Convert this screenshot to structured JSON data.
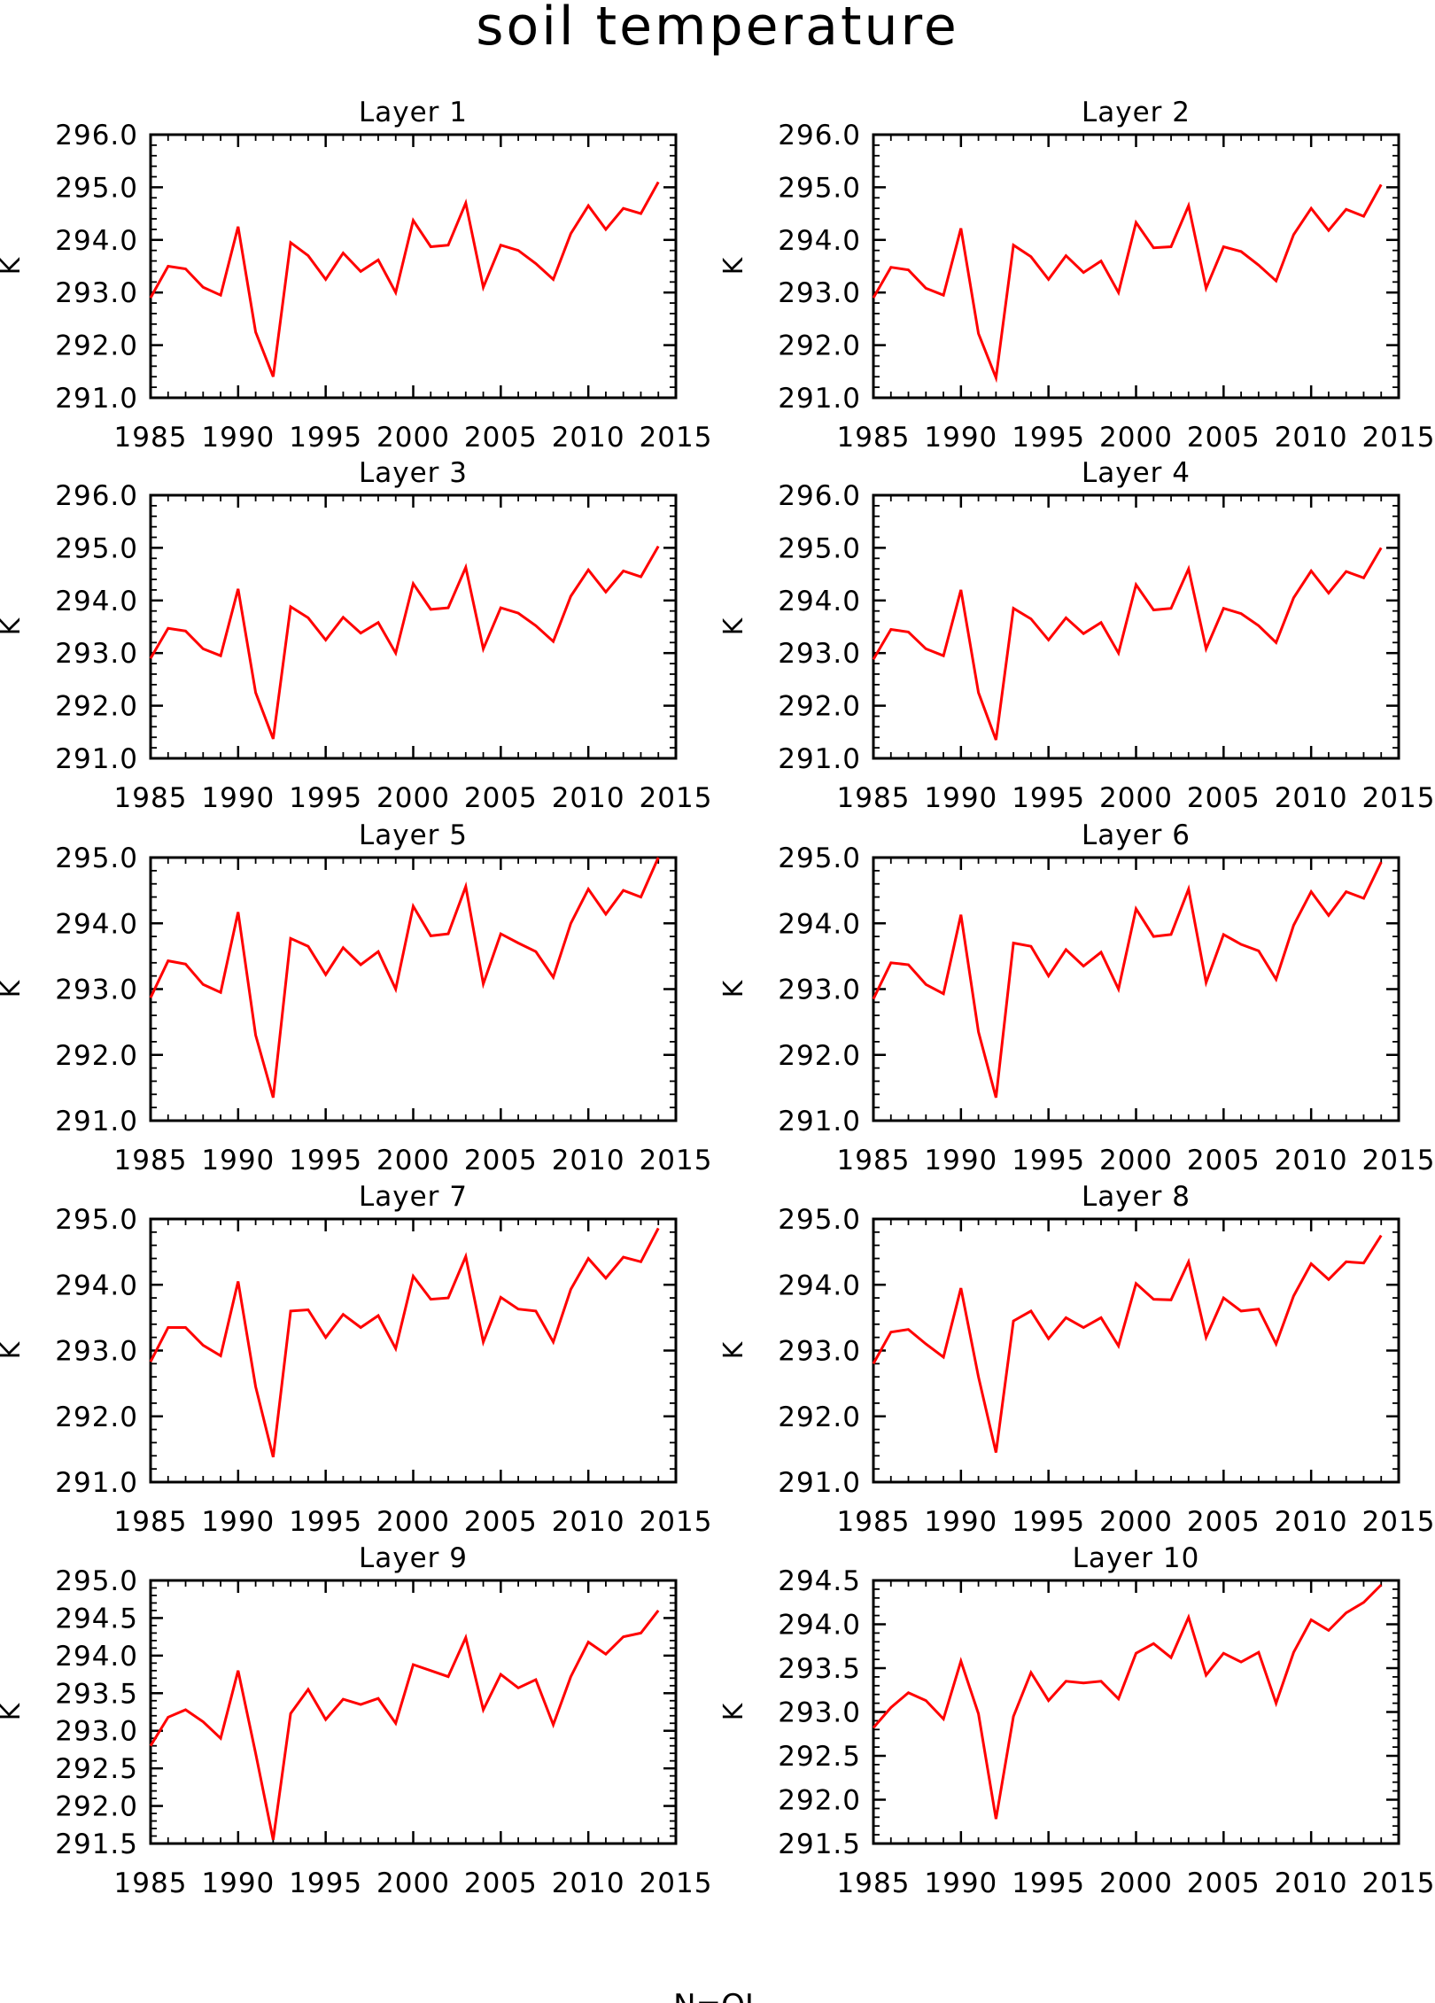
{
  "title": "soil temperature",
  "footer": "N=QL",
  "colors": {
    "series": "#ff0000",
    "axis": "#000000",
    "background": "#ffffff"
  },
  "chart_data": [
    {
      "type": "line",
      "title": "Layer 1",
      "xlabel": "",
      "ylabel": "K",
      "xlim": [
        1985,
        2015
      ],
      "ylim": [
        291.0,
        296.0
      ],
      "xticks": [
        "1985",
        "1990",
        "1995",
        "2000",
        "2005",
        "2010",
        "2015"
      ],
      "yticks": [
        "291.0",
        "292.0",
        "293.0",
        "294.0",
        "295.0",
        "296.0"
      ],
      "x": [
        1985,
        1986,
        1987,
        1988,
        1989,
        1990,
        1991,
        1992,
        1993,
        1994,
        1995,
        1996,
        1997,
        1998,
        1999,
        2000,
        2001,
        2002,
        2003,
        2004,
        2005,
        2006,
        2007,
        2008,
        2009,
        2010,
        2011,
        2012,
        2013,
        2014
      ],
      "values": [
        292.9,
        293.5,
        293.45,
        293.1,
        292.95,
        294.25,
        292.25,
        291.4,
        293.95,
        293.7,
        293.25,
        293.75,
        293.4,
        293.62,
        293.0,
        294.37,
        293.87,
        293.9,
        294.7,
        293.1,
        293.9,
        293.8,
        293.55,
        293.25,
        294.12,
        294.65,
        294.2,
        294.6,
        294.5,
        295.1
      ]
    },
    {
      "type": "line",
      "title": "Layer 2",
      "xlabel": "",
      "ylabel": "K",
      "xlim": [
        1985,
        2015
      ],
      "ylim": [
        291.0,
        296.0
      ],
      "xticks": [
        "1985",
        "1990",
        "1995",
        "2000",
        "2005",
        "2010",
        "2015"
      ],
      "yticks": [
        "291.0",
        "292.0",
        "293.0",
        "294.0",
        "295.0",
        "296.0"
      ],
      "x": [
        1985,
        1986,
        1987,
        1988,
        1989,
        1990,
        1991,
        1992,
        1993,
        1994,
        1995,
        1996,
        1997,
        1998,
        1999,
        2000,
        2001,
        2002,
        2003,
        2004,
        2005,
        2006,
        2007,
        2008,
        2009,
        2010,
        2011,
        2012,
        2013,
        2014
      ],
      "values": [
        292.9,
        293.48,
        293.43,
        293.08,
        292.95,
        294.22,
        292.22,
        291.38,
        293.9,
        293.68,
        293.25,
        293.7,
        293.38,
        293.6,
        293.0,
        294.33,
        293.85,
        293.87,
        294.65,
        293.08,
        293.87,
        293.78,
        293.52,
        293.22,
        294.1,
        294.6,
        294.18,
        294.58,
        294.45,
        295.05
      ]
    },
    {
      "type": "line",
      "title": "Layer 3",
      "xlabel": "",
      "ylabel": "K",
      "xlim": [
        1985,
        2015
      ],
      "ylim": [
        291.0,
        296.0
      ],
      "xticks": [
        "1985",
        "1990",
        "1995",
        "2000",
        "2005",
        "2010",
        "2015"
      ],
      "yticks": [
        "291.0",
        "292.0",
        "293.0",
        "294.0",
        "295.0",
        "296.0"
      ],
      "x": [
        1985,
        1986,
        1987,
        1988,
        1989,
        1990,
        1991,
        1992,
        1993,
        1994,
        1995,
        1996,
        1997,
        1998,
        1999,
        2000,
        2001,
        2002,
        2003,
        2004,
        2005,
        2006,
        2007,
        2008,
        2009,
        2010,
        2011,
        2012,
        2013,
        2014
      ],
      "values": [
        292.9,
        293.47,
        293.42,
        293.08,
        292.95,
        294.22,
        292.25,
        291.37,
        293.88,
        293.67,
        293.25,
        293.68,
        293.38,
        293.58,
        293.0,
        294.32,
        293.83,
        293.86,
        294.63,
        293.08,
        293.86,
        293.76,
        293.52,
        293.22,
        294.08,
        294.58,
        294.16,
        294.56,
        294.45,
        295.03
      ]
    },
    {
      "type": "line",
      "title": "Layer 4",
      "xlabel": "",
      "ylabel": "K",
      "xlim": [
        1985,
        2015
      ],
      "ylim": [
        291.0,
        296.0
      ],
      "xticks": [
        "1985",
        "1990",
        "1995",
        "2000",
        "2005",
        "2010",
        "2015"
      ],
      "yticks": [
        "291.0",
        "292.0",
        "293.0",
        "294.0",
        "295.0",
        "296.0"
      ],
      "x": [
        1985,
        1986,
        1987,
        1988,
        1989,
        1990,
        1991,
        1992,
        1993,
        1994,
        1995,
        1996,
        1997,
        1998,
        1999,
        2000,
        2001,
        2002,
        2003,
        2004,
        2005,
        2006,
        2007,
        2008,
        2009,
        2010,
        2011,
        2012,
        2013,
        2014
      ],
      "values": [
        292.88,
        293.45,
        293.4,
        293.08,
        292.95,
        294.2,
        292.25,
        291.35,
        293.85,
        293.65,
        293.25,
        293.67,
        293.37,
        293.58,
        293.0,
        294.3,
        293.82,
        293.85,
        294.6,
        293.08,
        293.85,
        293.75,
        293.52,
        293.2,
        294.05,
        294.56,
        294.14,
        294.55,
        294.43,
        295.0
      ]
    },
    {
      "type": "line",
      "title": "Layer 5",
      "xlabel": "",
      "ylabel": "K",
      "xlim": [
        1985,
        2015
      ],
      "ylim": [
        291.0,
        295.0
      ],
      "xticks": [
        "1985",
        "1990",
        "1995",
        "2000",
        "2005",
        "2010",
        "2015"
      ],
      "yticks": [
        "291.0",
        "292.0",
        "293.0",
        "294.0",
        "295.0"
      ],
      "x": [
        1985,
        1986,
        1987,
        1988,
        1989,
        1990,
        1991,
        1992,
        1993,
        1994,
        1995,
        1996,
        1997,
        1998,
        1999,
        2000,
        2001,
        2002,
        2003,
        2004,
        2005,
        2006,
        2007,
        2008,
        2009,
        2010,
        2011,
        2012,
        2013,
        2014
      ],
      "values": [
        292.87,
        293.43,
        293.38,
        293.07,
        292.95,
        294.17,
        292.3,
        291.35,
        293.77,
        293.65,
        293.22,
        293.63,
        293.37,
        293.57,
        293.0,
        294.26,
        293.81,
        293.84,
        294.56,
        293.08,
        293.84,
        293.7,
        293.57,
        293.18,
        294.0,
        294.52,
        294.14,
        294.5,
        294.4,
        295.0
      ]
    },
    {
      "type": "line",
      "title": "Layer 6",
      "xlabel": "",
      "ylabel": "K",
      "xlim": [
        1985,
        2015
      ],
      "ylim": [
        291.0,
        295.0
      ],
      "xticks": [
        "1985",
        "1990",
        "1995",
        "2000",
        "2005",
        "2010",
        "2015"
      ],
      "yticks": [
        "291.0",
        "292.0",
        "293.0",
        "294.0",
        "295.0"
      ],
      "x": [
        1985,
        1986,
        1987,
        1988,
        1989,
        1990,
        1991,
        1992,
        1993,
        1994,
        1995,
        1996,
        1997,
        1998,
        1999,
        2000,
        2001,
        2002,
        2003,
        2004,
        2005,
        2006,
        2007,
        2008,
        2009,
        2010,
        2011,
        2012,
        2013,
        2014
      ],
      "values": [
        292.85,
        293.4,
        293.37,
        293.07,
        292.93,
        294.13,
        292.35,
        291.35,
        293.7,
        293.65,
        293.2,
        293.6,
        293.35,
        293.56,
        293.0,
        294.22,
        293.8,
        293.83,
        294.52,
        293.1,
        293.83,
        293.68,
        293.58,
        293.15,
        293.97,
        294.48,
        294.12,
        294.48,
        294.38,
        294.93
      ]
    },
    {
      "type": "line",
      "title": "Layer 7",
      "xlabel": "",
      "ylabel": "K",
      "xlim": [
        1985,
        2015
      ],
      "ylim": [
        291.0,
        295.0
      ],
      "xticks": [
        "1985",
        "1990",
        "1995",
        "2000",
        "2005",
        "2010",
        "2015"
      ],
      "yticks": [
        "291.0",
        "292.0",
        "293.0",
        "294.0",
        "295.0"
      ],
      "x": [
        1985,
        1986,
        1987,
        1988,
        1989,
        1990,
        1991,
        1992,
        1993,
        1994,
        1995,
        1996,
        1997,
        1998,
        1999,
        2000,
        2001,
        2002,
        2003,
        2004,
        2005,
        2006,
        2007,
        2008,
        2009,
        2010,
        2011,
        2012,
        2013,
        2014
      ],
      "values": [
        292.83,
        293.35,
        293.35,
        293.08,
        292.92,
        294.05,
        292.45,
        291.38,
        293.6,
        293.62,
        293.2,
        293.55,
        293.35,
        293.53,
        293.03,
        294.13,
        293.78,
        293.8,
        294.43,
        293.13,
        293.81,
        293.63,
        293.6,
        293.13,
        293.93,
        294.4,
        294.1,
        294.42,
        294.35,
        294.86
      ]
    },
    {
      "type": "line",
      "title": "Layer 8",
      "xlabel": "",
      "ylabel": "K",
      "xlim": [
        1985,
        2015
      ],
      "ylim": [
        291.0,
        295.0
      ],
      "xticks": [
        "1985",
        "1990",
        "1995",
        "2000",
        "2005",
        "2010",
        "2015"
      ],
      "yticks": [
        "291.0",
        "292.0",
        "293.0",
        "294.0",
        "295.0"
      ],
      "x": [
        1985,
        1986,
        1987,
        1988,
        1989,
        1990,
        1991,
        1992,
        1993,
        1994,
        1995,
        1996,
        1997,
        1998,
        1999,
        2000,
        2001,
        2002,
        2003,
        2004,
        2005,
        2006,
        2007,
        2008,
        2009,
        2010,
        2011,
        2012,
        2013,
        2014
      ],
      "values": [
        292.8,
        293.28,
        293.32,
        293.1,
        292.9,
        293.95,
        292.6,
        291.45,
        293.45,
        293.6,
        293.18,
        293.5,
        293.35,
        293.5,
        293.07,
        294.02,
        293.78,
        293.77,
        294.35,
        293.2,
        293.8,
        293.6,
        293.63,
        293.1,
        293.83,
        294.32,
        294.08,
        294.35,
        294.33,
        294.75
      ]
    },
    {
      "type": "line",
      "title": "Layer 9",
      "xlabel": "",
      "ylabel": "K",
      "xlim": [
        1985,
        2015
      ],
      "ylim": [
        291.5,
        295.0
      ],
      "xticks": [
        "1985",
        "1990",
        "1995",
        "2000",
        "2005",
        "2010",
        "2015"
      ],
      "yticks": [
        "291.5",
        "292.0",
        "292.5",
        "293.0",
        "293.5",
        "294.0",
        "294.5",
        "295.0"
      ],
      "x": [
        1985,
        1986,
        1987,
        1988,
        1989,
        1990,
        1991,
        1992,
        1993,
        1994,
        1995,
        1996,
        1997,
        1998,
        1999,
        2000,
        2001,
        2002,
        2003,
        2004,
        2005,
        2006,
        2007,
        2008,
        2009,
        2010,
        2011,
        2012,
        2013,
        2014
      ],
      "values": [
        292.8,
        293.18,
        293.28,
        293.12,
        292.9,
        293.8,
        292.7,
        291.55,
        293.23,
        293.55,
        293.15,
        293.42,
        293.35,
        293.43,
        293.1,
        293.88,
        293.8,
        293.72,
        294.24,
        293.28,
        293.75,
        293.57,
        293.68,
        293.08,
        293.72,
        294.18,
        294.02,
        294.25,
        294.3,
        294.6
      ]
    },
    {
      "type": "line",
      "title": "Layer 10",
      "xlabel": "",
      "ylabel": "K",
      "xlim": [
        1985,
        2015
      ],
      "ylim": [
        291.5,
        294.5
      ],
      "xticks": [
        "1985",
        "1990",
        "1995",
        "2000",
        "2005",
        "2010",
        "2015"
      ],
      "yticks": [
        "291.5",
        "292.0",
        "292.5",
        "293.0",
        "293.5",
        "294.0",
        "294.5"
      ],
      "x": [
        1985,
        1986,
        1987,
        1988,
        1989,
        1990,
        1991,
        1992,
        1993,
        1994,
        1995,
        1996,
        1997,
        1998,
        1999,
        2000,
        2001,
        2002,
        2003,
        2004,
        2005,
        2006,
        2007,
        2008,
        2009,
        2010,
        2011,
        2012,
        2013,
        2014
      ],
      "values": [
        292.82,
        293.05,
        293.22,
        293.13,
        292.92,
        293.58,
        292.98,
        291.78,
        292.95,
        293.45,
        293.13,
        293.35,
        293.33,
        293.35,
        293.15,
        293.67,
        293.78,
        293.62,
        294.08,
        293.42,
        293.67,
        293.57,
        293.68,
        293.1,
        293.68,
        294.05,
        293.93,
        294.13,
        294.25,
        294.45
      ]
    }
  ]
}
